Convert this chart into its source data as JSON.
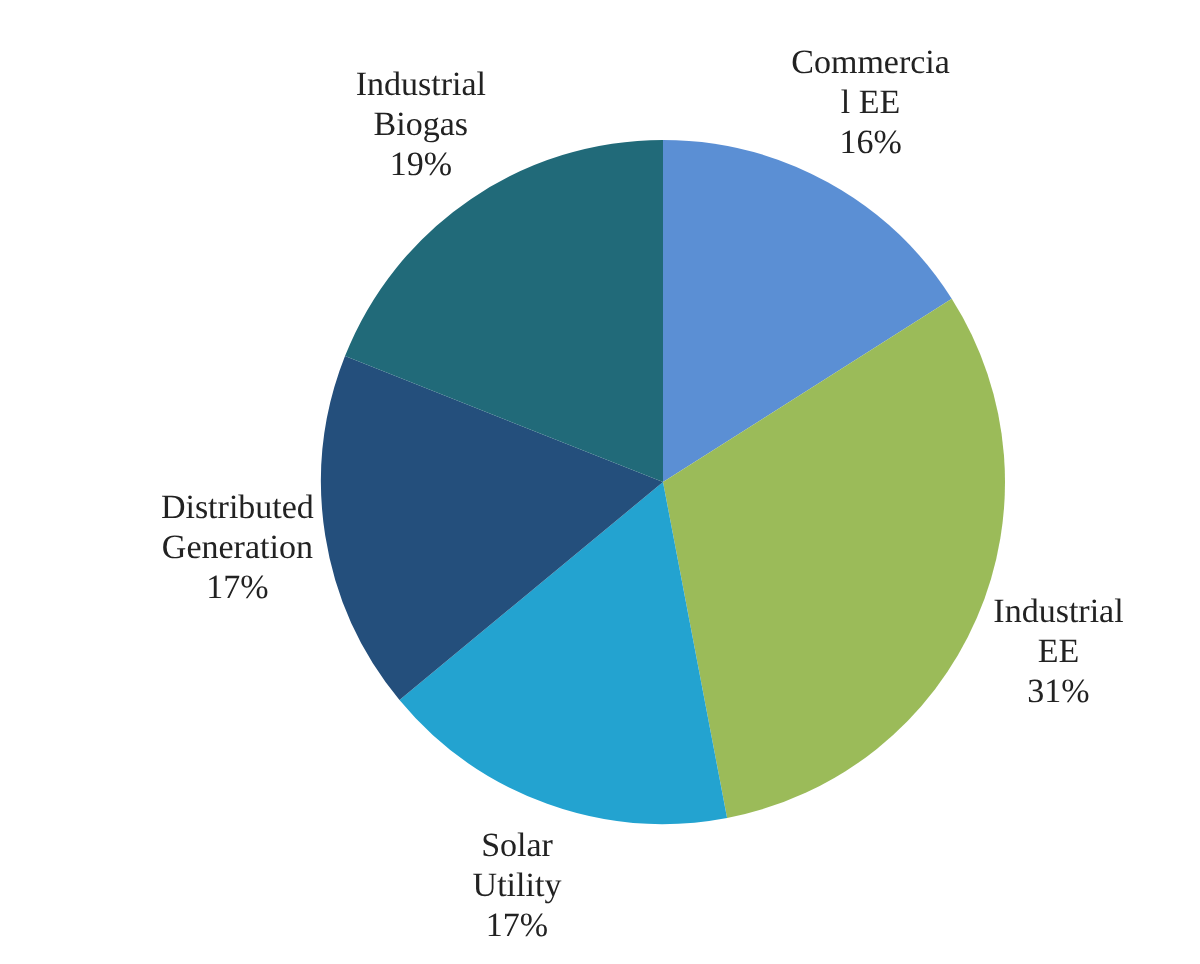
{
  "chart_data": {
    "type": "pie",
    "categories": [
      "Commercial EE",
      "Industrial EE",
      "Solar Utility",
      "Distributed Generation",
      "Industrial Biogas"
    ],
    "values": [
      16,
      31,
      17,
      17,
      19
    ],
    "value_labels": [
      "16%",
      "31%",
      "17%",
      "17%",
      "19%"
    ],
    "colors": [
      "#5b8fd4",
      "#9bbb59",
      "#23a3d0",
      "#244f7c",
      "#216a79"
    ],
    "legend": false
  }
}
